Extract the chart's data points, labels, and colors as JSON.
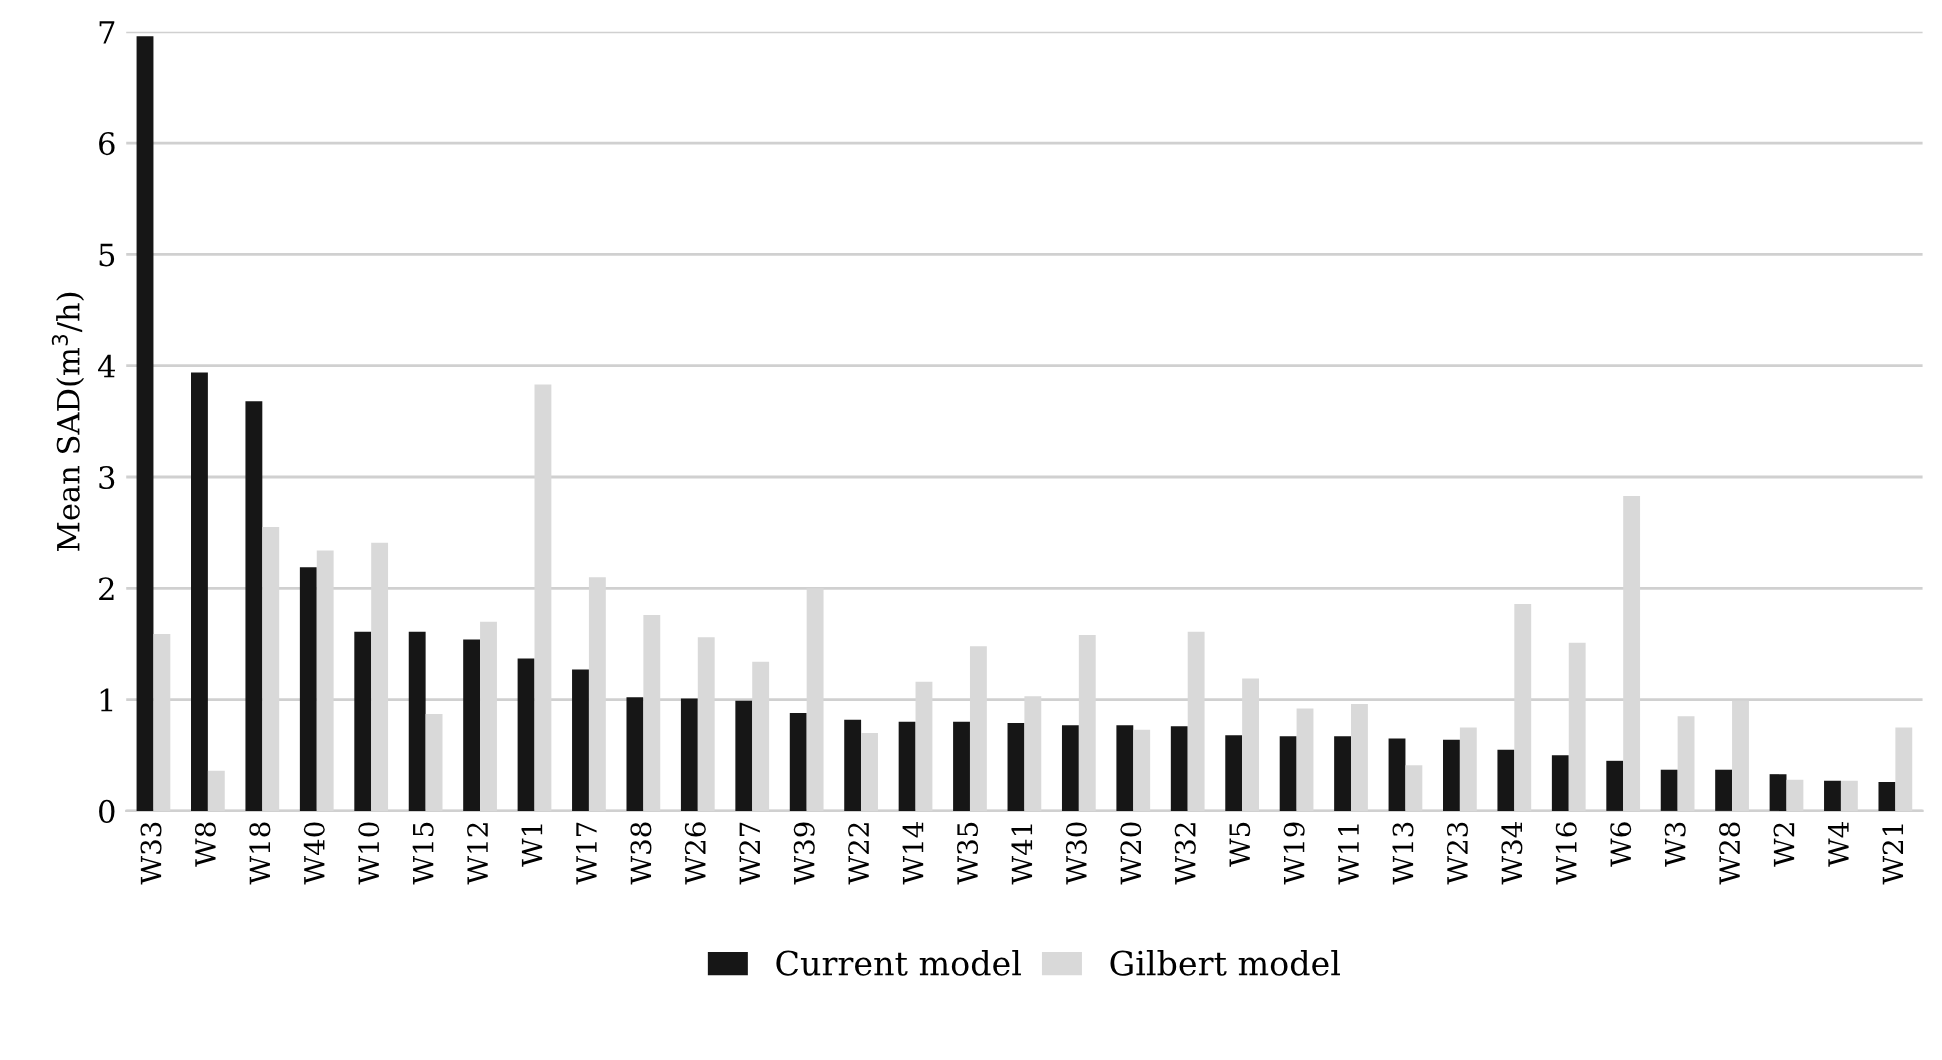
{
  "chart_data": {
    "type": "bar",
    "ylabel": "Mean SAD(m$^{3}$/h)",
    "categories": [
      "W33",
      "W8",
      "W18",
      "W40",
      "W10",
      "W15",
      "W12",
      "W1",
      "W17",
      "W38",
      "W26",
      "W27",
      "W39",
      "W22",
      "W14",
      "W35",
      "W41",
      "W30",
      "W20",
      "W32",
      "W5",
      "W19",
      "W11",
      "W13",
      "W23",
      "W34",
      "W16",
      "W6",
      "W3",
      "W28",
      "W2",
      "W4",
      "W21"
    ],
    "series": [
      {
        "name": "Current model",
        "color": "#161616",
        "values": [
          6.96,
          3.94,
          3.68,
          2.19,
          1.61,
          1.61,
          1.54,
          1.37,
          1.27,
          1.02,
          1.01,
          0.99,
          0.88,
          0.82,
          0.8,
          0.8,
          0.79,
          0.77,
          0.77,
          0.76,
          0.68,
          0.67,
          0.67,
          0.65,
          0.64,
          0.55,
          0.5,
          0.45,
          0.37,
          0.37,
          0.33,
          0.27,
          0.26
        ]
      },
      {
        "name": "Gilbert model",
        "color": "#d9d9d9",
        "values": [
          1.59,
          0.36,
          2.55,
          2.34,
          2.41,
          0.87,
          1.7,
          3.83,
          2.1,
          1.76,
          1.56,
          1.34,
          2.0,
          0.7,
          1.16,
          1.48,
          1.03,
          1.58,
          0.73,
          1.61,
          1.19,
          0.92,
          0.96,
          0.41,
          0.75,
          1.86,
          1.51,
          2.83,
          0.85,
          0.99,
          0.28,
          0.27,
          0.75
        ]
      }
    ],
    "ylim": [
      0,
      7
    ],
    "yticks": [
      0,
      1,
      2,
      3,
      4,
      5,
      6,
      7
    ],
    "grid": "y",
    "legend": "bottom"
  }
}
